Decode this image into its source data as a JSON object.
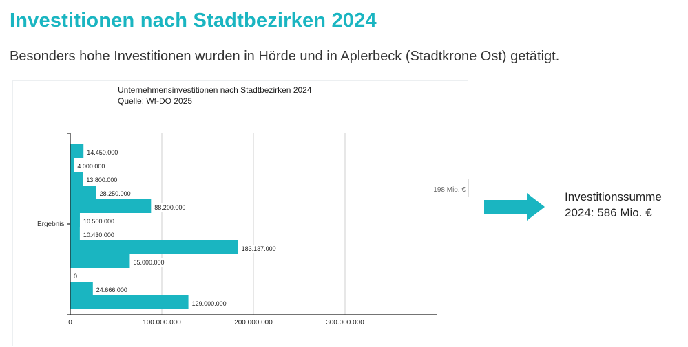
{
  "page": {
    "title": "Investitionen nach Stadtbezirken 2024",
    "subtitle": "Besonders hohe Investitionen wurden in Hörde und in Aplerbeck (Stadtkrone Ost) getätigt."
  },
  "summary": {
    "line1": "Investitionssumme",
    "line2": "2024: 586 Mio. €"
  },
  "colors": {
    "bar": "#1ab5c1",
    "title": "#1ab5c1",
    "arrow": "#1ab5c1"
  },
  "chart_data": {
    "type": "bar",
    "orientation": "horizontal",
    "title": "Unternehmensinvestitionen nach Stadtbezirken 2024",
    "subtitle": "Quelle: Wf-DO 2025",
    "category_label": "Ergebnis",
    "values": [
      14450000,
      4000000,
      13800000,
      28250000,
      88200000,
      10500000,
      10430000,
      183137000,
      65000000,
      0,
      24666000,
      129000000
    ],
    "value_labels": [
      "14.450.000",
      "4.000.000",
      "13.800.000",
      "28.250.000",
      "88.200.000",
      "10.500.000",
      "10.430.000",
      "183.137.000",
      "65.000.000",
      "0",
      "24.666.000",
      "129.000.000"
    ],
    "xlim": [
      0,
      400000000
    ],
    "x_ticks": [
      0,
      100000000,
      200000000,
      300000000
    ],
    "x_tick_labels": [
      "0",
      "100.000.000",
      "200.000.000",
      "300.000.000"
    ],
    "grid": true,
    "annotation": "198 Mio. €"
  }
}
